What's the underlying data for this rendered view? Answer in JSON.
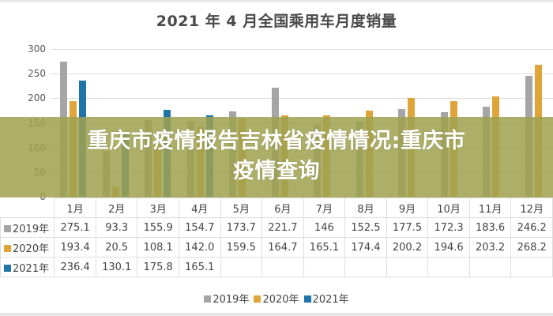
{
  "chart_data": {
    "type": "bar",
    "title": "2021 年 4 月全国乘用车月度销量",
    "xlabel": "",
    "ylabel": "",
    "ylim": [
      0,
      300
    ],
    "yticks": [
      0,
      50,
      100,
      150,
      200,
      250,
      300
    ],
    "grid": true,
    "legend_position": "bottom",
    "categories": [
      "1月",
      "2月",
      "3月",
      "4月",
      "5月",
      "6月",
      "7月",
      "8月",
      "9月",
      "10月",
      "11月",
      "12月"
    ],
    "series": [
      {
        "name": "2019年",
        "color": "#a5a5a5",
        "values": [
          275.1,
          93.3,
          155.9,
          154.7,
          173.7,
          221.7,
          146,
          152.5,
          177.5,
          172.3,
          183.6,
          246.2
        ]
      },
      {
        "name": "2020年",
        "color": "#e0a53a",
        "values": [
          193.4,
          20.5,
          108.1,
          142.0,
          159.5,
          164.7,
          165.1,
          174.4,
          200.2,
          194.6,
          203.2,
          268.2
        ]
      },
      {
        "name": "2021年",
        "color": "#1f74a8",
        "values": [
          236.4,
          130.1,
          175.8,
          165.1,
          null,
          null,
          null,
          null,
          null,
          null,
          null,
          null
        ]
      }
    ]
  },
  "table": {
    "rows": [
      {
        "label": "2019年",
        "cells": [
          "275.1",
          "93.3",
          "155.9",
          "154.7",
          "173.7",
          "221.7",
          "146",
          "152.5",
          "177.5",
          "172.3",
          "183.6",
          "246.2"
        ]
      },
      {
        "label": "2020年",
        "cells": [
          "193.4",
          "20.5",
          "108.1",
          "142.0",
          "159.5",
          "164.7",
          "165.1",
          "174.4",
          "200.2",
          "194.6",
          "203.2",
          "268.2"
        ]
      },
      {
        "label": "2021年",
        "cells": [
          "236.4",
          "130.1",
          "175.8",
          "165.1",
          "",
          "",
          "",
          "",
          "",
          "",
          "",
          ""
        ]
      }
    ]
  },
  "legend": [
    "2019年",
    "2020年",
    "2021年"
  ],
  "overlay": {
    "line1": "重庆市疫情报告吉林省疫情情况:重庆市",
    "line2": "疫情查询",
    "color": "#a0a250"
  }
}
